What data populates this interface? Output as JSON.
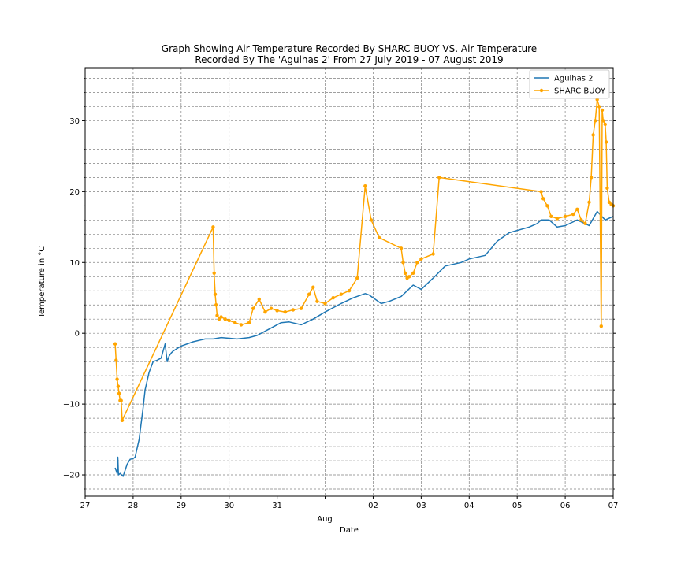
{
  "chart_data": {
    "type": "line",
    "title": "Graph Showing Air Temperature Recorded By SHARC BUOY VS. Air Temperature",
    "subtitle": "Recorded By The 'Agulhas 2' From 27 July 2019 - 07 August 2019",
    "xlabel": "Date",
    "ylabel": "Temperature in °C",
    "x_minor_label": "Aug",
    "xlim": [
      "2019-07-27",
      "2019-08-07"
    ],
    "ylim": [
      -23,
      37.5
    ],
    "x_ticks": [
      {
        "date": "2019-07-27",
        "label": "27"
      },
      {
        "date": "2019-07-28",
        "label": "28"
      },
      {
        "date": "2019-07-29",
        "label": "29"
      },
      {
        "date": "2019-07-30",
        "label": "30"
      },
      {
        "date": "2019-07-31",
        "label": "31"
      },
      {
        "date": "2019-08-01",
        "label": ""
      },
      {
        "date": "2019-08-02",
        "label": "02"
      },
      {
        "date": "2019-08-03",
        "label": "03"
      },
      {
        "date": "2019-08-04",
        "label": "04"
      },
      {
        "date": "2019-08-05",
        "label": "05"
      },
      {
        "date": "2019-08-06",
        "label": "06"
      },
      {
        "date": "2019-08-07",
        "label": "07"
      }
    ],
    "y_ticks": [
      -20,
      -10,
      0,
      10,
      20,
      30
    ],
    "grid": true,
    "legend": "top-right",
    "series": [
      {
        "name": "Agulhas 2",
        "color": "#1f77b4",
        "marker": "none",
        "x": [
          "2019-07-27 15:00",
          "2019-07-27 16:00",
          "2019-07-27 16:20",
          "2019-07-27 16:40",
          "2019-07-27 17:30",
          "2019-07-27 19:00",
          "2019-07-27 21:00",
          "2019-07-27 22:30",
          "2019-07-28 00:00",
          "2019-07-28 01:00",
          "2019-07-28 03:00",
          "2019-07-28 05:00",
          "2019-07-28 06:00",
          "2019-07-28 08:00",
          "2019-07-28 10:00",
          "2019-07-28 12:00",
          "2019-07-28 14:00",
          "2019-07-28 16:00",
          "2019-07-28 17:00",
          "2019-07-28 18:00",
          "2019-07-28 19:00",
          "2019-07-28 20:00",
          "2019-07-29 00:00",
          "2019-07-29 06:00",
          "2019-07-29 12:00",
          "2019-07-29 16:00",
          "2019-07-29 20:00",
          "2019-07-30 04:00",
          "2019-07-30 10:00",
          "2019-07-30 14:00",
          "2019-07-30 20:00",
          "2019-07-31 02:00",
          "2019-07-31 06:00",
          "2019-07-31 12:00",
          "2019-07-31 18:00",
          "2019-08-01 00:00",
          "2019-08-01 08:00",
          "2019-08-01 14:00",
          "2019-08-01 20:00",
          "2019-08-01 22:00",
          "2019-08-02 04:00",
          "2019-08-02 08:00",
          "2019-08-02 14:00",
          "2019-08-02 20:00",
          "2019-08-03 00:00",
          "2019-08-03 06:00",
          "2019-08-03 12:00",
          "2019-08-03 20:00",
          "2019-08-04 00:00",
          "2019-08-04 08:00",
          "2019-08-04 14:00",
          "2019-08-04 20:00",
          "2019-08-05 06:00",
          "2019-08-05 10:00",
          "2019-08-05 12:00",
          "2019-08-05 16:00",
          "2019-08-05 20:00",
          "2019-08-06 00:00",
          "2019-08-06 06:00",
          "2019-08-06 12:00",
          "2019-08-06 16:00",
          "2019-08-06 20:00",
          "2019-08-07 00:00"
        ],
        "y": [
          -19.0,
          -19.8,
          -17.5,
          -20.0,
          -19.8,
          -20.2,
          -18.5,
          -17.8,
          -17.7,
          -17.5,
          -15.0,
          -10.5,
          -8.0,
          -5.5,
          -4.0,
          -3.8,
          -3.5,
          -1.5,
          -4.0,
          -3.2,
          -2.8,
          -2.5,
          -1.8,
          -1.2,
          -0.8,
          -0.8,
          -0.6,
          -0.8,
          -0.6,
          -0.3,
          0.6,
          1.5,
          1.6,
          1.2,
          2.0,
          3.0,
          4.2,
          5.0,
          5.6,
          5.4,
          4.2,
          4.5,
          5.2,
          6.8,
          6.2,
          7.8,
          9.5,
          10.0,
          10.5,
          11.0,
          13.0,
          14.2,
          15.0,
          15.5,
          16.0,
          16.0,
          15.0,
          15.2,
          16.0,
          15.2,
          17.2,
          16.0,
          16.5
        ]
      },
      {
        "name": "SHARC BUOY",
        "color": "#ffa500",
        "marker": "circle",
        "x": [
          "2019-07-27 15:00",
          "2019-07-27 15:30",
          "2019-07-27 16:00",
          "2019-07-27 16:30",
          "2019-07-27 17:00",
          "2019-07-27 17:30",
          "2019-07-27 18:00",
          "2019-07-27 18:30",
          "2019-07-29 16:00",
          "2019-07-29 16:30",
          "2019-07-29 17:00",
          "2019-07-29 17:30",
          "2019-07-29 18:00",
          "2019-07-29 19:00",
          "2019-07-29 20:00",
          "2019-07-29 22:00",
          "2019-07-30 00:00",
          "2019-07-30 03:00",
          "2019-07-30 06:00",
          "2019-07-30 10:00",
          "2019-07-30 12:00",
          "2019-07-30 15:00",
          "2019-07-30 18:00",
          "2019-07-30 21:00",
          "2019-07-31 00:00",
          "2019-07-31 04:00",
          "2019-07-31 08:00",
          "2019-07-31 12:00",
          "2019-07-31 16:00",
          "2019-07-31 18:00",
          "2019-07-31 20:00",
          "2019-08-01 00:00",
          "2019-08-01 04:00",
          "2019-08-01 08:00",
          "2019-08-01 12:00",
          "2019-08-01 16:00",
          "2019-08-01 20:00",
          "2019-08-01 23:00",
          "2019-08-02 03:00",
          "2019-08-02 14:00",
          "2019-08-02 15:00",
          "2019-08-02 16:00",
          "2019-08-02 17:00",
          "2019-08-02 18:00",
          "2019-08-02 20:00",
          "2019-08-02 22:00",
          "2019-08-03 00:00",
          "2019-08-03 06:00",
          "2019-08-03 09:00",
          "2019-08-05 12:00",
          "2019-08-05 13:00",
          "2019-08-05 15:00",
          "2019-08-05 17:00",
          "2019-08-05 20:00",
          "2019-08-06 00:00",
          "2019-08-06 04:00",
          "2019-08-06 06:00",
          "2019-08-06 08:00",
          "2019-08-06 10:00",
          "2019-08-06 12:00",
          "2019-08-06 13:00",
          "2019-08-06 14:00",
          "2019-08-06 15:00",
          "2019-08-06 16:00",
          "2019-08-06 17:00",
          "2019-08-06 18:00",
          "2019-08-06 18:30",
          "2019-08-06 19:00",
          "2019-08-06 20:00",
          "2019-08-06 20:30",
          "2019-08-06 21:00",
          "2019-08-06 22:00",
          "2019-08-06 23:00",
          "2019-08-07 00:00"
        ],
        "y": [
          -1.5,
          -3.8,
          -6.5,
          -7.5,
          -8.5,
          -9.5,
          -9.5,
          -12.3,
          15.0,
          8.5,
          5.5,
          4.0,
          2.5,
          2.0,
          2.3,
          2.0,
          1.8,
          1.5,
          1.2,
          1.5,
          3.5,
          4.8,
          3.0,
          3.5,
          3.2,
          3.0,
          3.3,
          3.5,
          5.5,
          6.5,
          4.5,
          4.2,
          5.0,
          5.5,
          6.0,
          7.8,
          20.8,
          16.0,
          13.5,
          12.0,
          10.0,
          8.5,
          7.8,
          8.0,
          8.5,
          10.0,
          10.5,
          11.2,
          22.0,
          20.0,
          19.0,
          18.0,
          16.5,
          16.2,
          16.5,
          16.8,
          17.5,
          16.0,
          15.5,
          18.5,
          22.0,
          28.0,
          30.0,
          33.0,
          32.0,
          1.0,
          31.5,
          30.0,
          29.5,
          27.0,
          20.5,
          18.5,
          18.2,
          18.0
        ]
      }
    ]
  }
}
